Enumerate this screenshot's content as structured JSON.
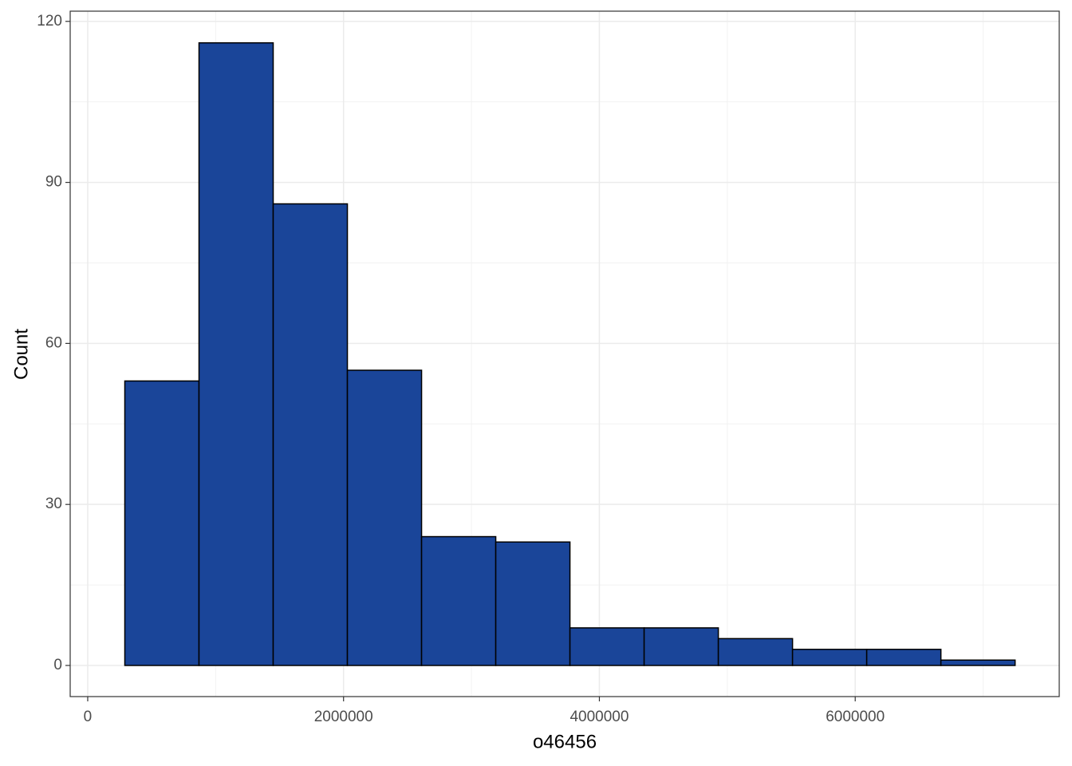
{
  "chart_data": {
    "type": "histogram",
    "x_label": "o46456",
    "y_label": "Count",
    "bins": [
      290000,
      870000,
      1450000,
      2030000,
      2610000,
      3190000,
      3770000,
      4350000,
      4930000,
      5510000,
      6090000,
      6670000,
      7250000
    ],
    "values": [
      53,
      116,
      86,
      55,
      24,
      23,
      7,
      7,
      5,
      3,
      3,
      1
    ],
    "color": "#1a4599",
    "edge_color": "#000000",
    "xlim": [
      -137000,
      7595000
    ],
    "ylim": [
      -5.8,
      121.9
    ],
    "xticks": [
      0,
      2000000,
      4000000,
      6000000
    ],
    "yticks": [
      0,
      30,
      60,
      90,
      120
    ],
    "x_minor_ticks": [
      1000000,
      3000000,
      5000000,
      7000000
    ],
    "y_minor_ticks": [
      15,
      45,
      75,
      105
    ],
    "grid": true
  }
}
